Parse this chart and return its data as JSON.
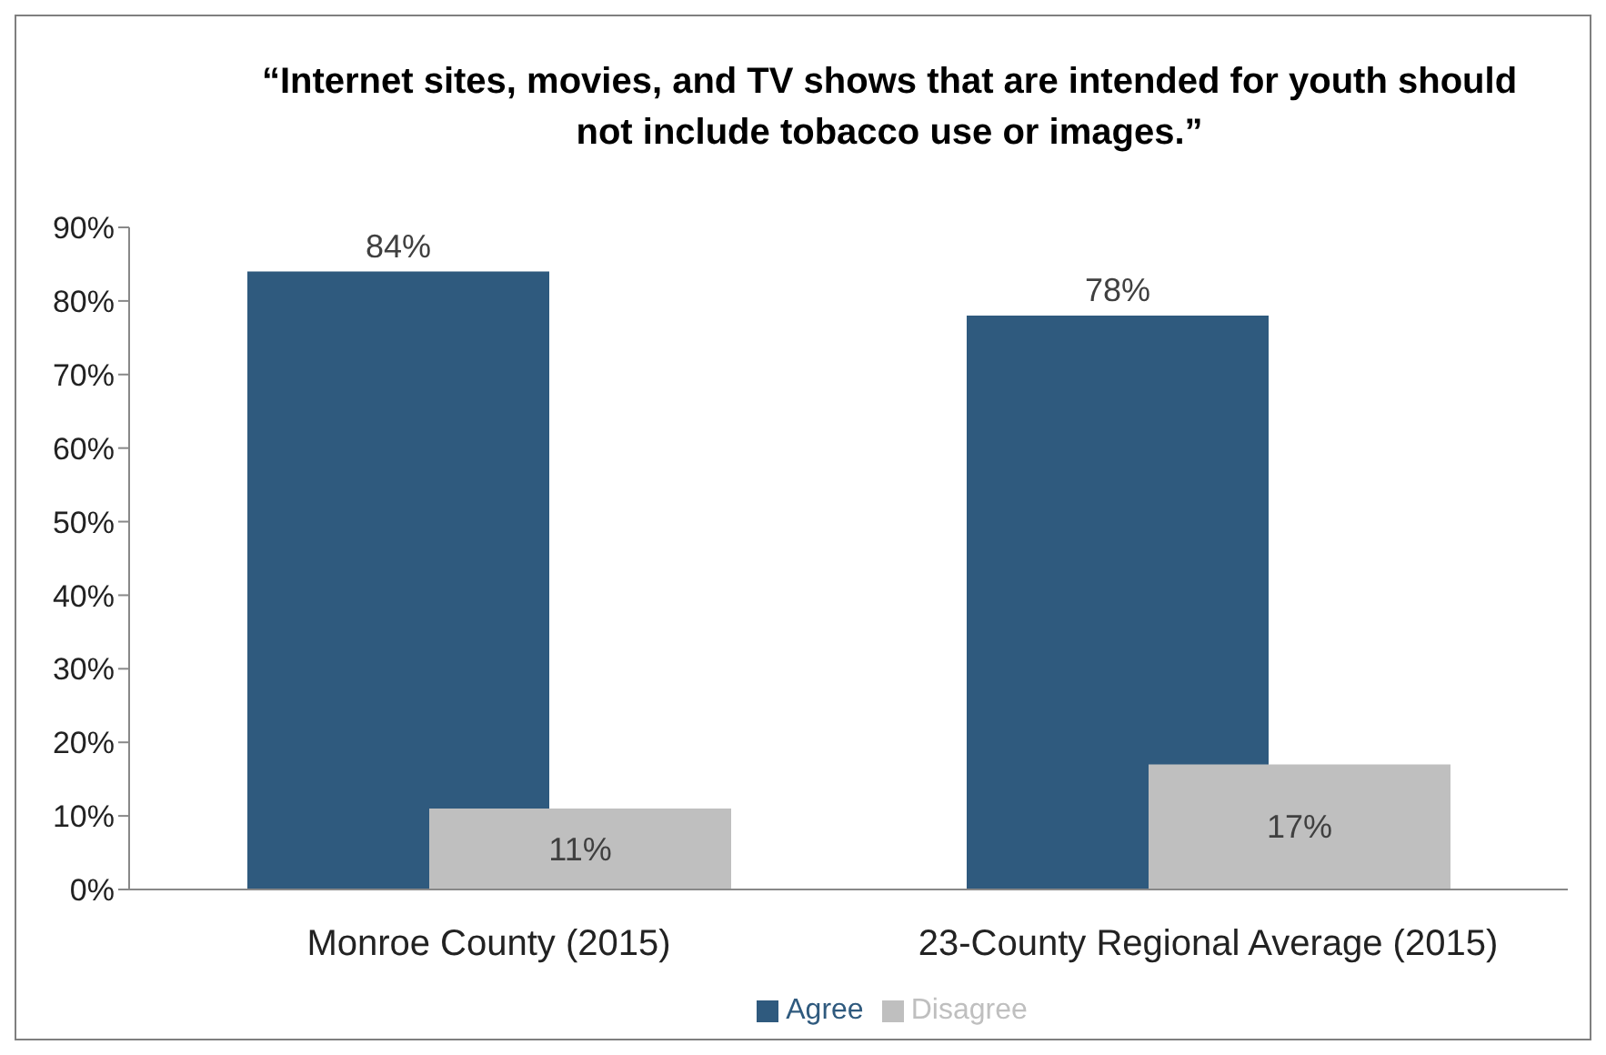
{
  "chart_data": {
    "type": "bar",
    "title": "“Internet sites, movies, and TV shows that are intended for youth should not include tobacco use or images.”",
    "categories": [
      "Monroe County (2015)",
      "23-County Regional Average (2015)"
    ],
    "series": [
      {
        "name": "Agree",
        "color": "#2f5a7e",
        "values": [
          84,
          78
        ],
        "value_labels": [
          "84%",
          "78%"
        ]
      },
      {
        "name": "Disagree",
        "color": "#bfbfbf",
        "values": [
          11,
          17
        ],
        "value_labels": [
          "11%",
          "17%"
        ]
      }
    ],
    "ylim": [
      0,
      90
    ],
    "yticks": [
      {
        "value": 0,
        "label": "0%"
      },
      {
        "value": 10,
        "label": "10%"
      },
      {
        "value": 20,
        "label": "20%"
      },
      {
        "value": 30,
        "label": "30%"
      },
      {
        "value": 40,
        "label": "40%"
      },
      {
        "value": 50,
        "label": "50%"
      },
      {
        "value": 60,
        "label": "60%"
      },
      {
        "value": 70,
        "label": "70%"
      },
      {
        "value": 80,
        "label": "80%"
      },
      {
        "value": 90,
        "label": "90%"
      }
    ],
    "legend": "bottom"
  }
}
